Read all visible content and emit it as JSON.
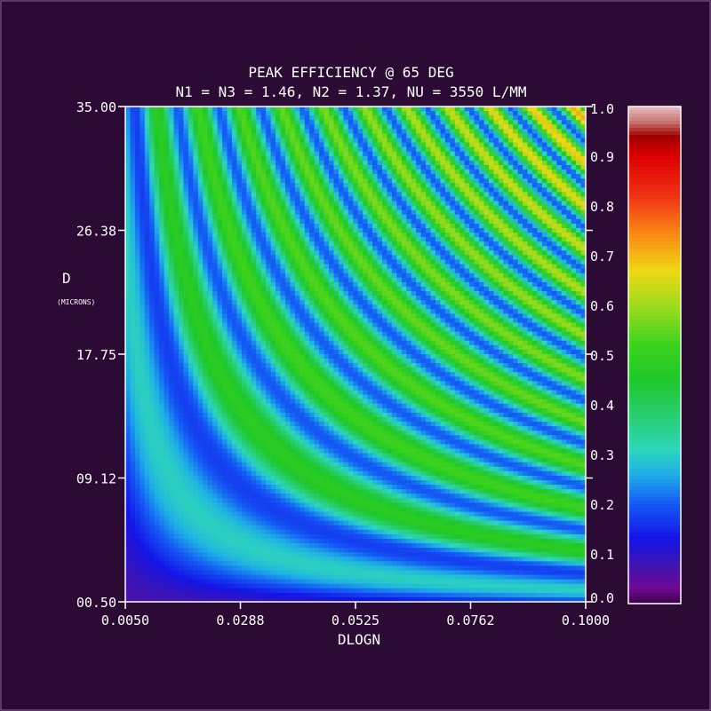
{
  "chart_data": {
    "type": "heatmap",
    "title": "PEAK EFFICIENCY @ 65 DEG",
    "subtitle": "N1 = N3 = 1.46, N2 = 1.37, NU = 3550 L/MM",
    "xlabel": "DLOGN",
    "ylabel": "D",
    "ylabel_unit": "(MICRONS)",
    "x_ticks": [
      "0.0050",
      "0.0288",
      "0.0525",
      "0.0762",
      "0.1000"
    ],
    "y_ticks": [
      "00.50",
      "09.12",
      "17.75",
      "26.38",
      "35.00"
    ],
    "xlim": [
      0.005,
      0.1
    ],
    "ylim": [
      0.5,
      35.0
    ],
    "colorbar_ticks": [
      "0.0",
      "0.1",
      "0.2",
      "0.3",
      "0.4",
      "0.5",
      "0.6",
      "0.7",
      "0.8",
      "0.9",
      "1.0"
    ],
    "colorbar_range": [
      0.0,
      1.0
    ],
    "grid": false,
    "colormap": "rainbow"
  }
}
